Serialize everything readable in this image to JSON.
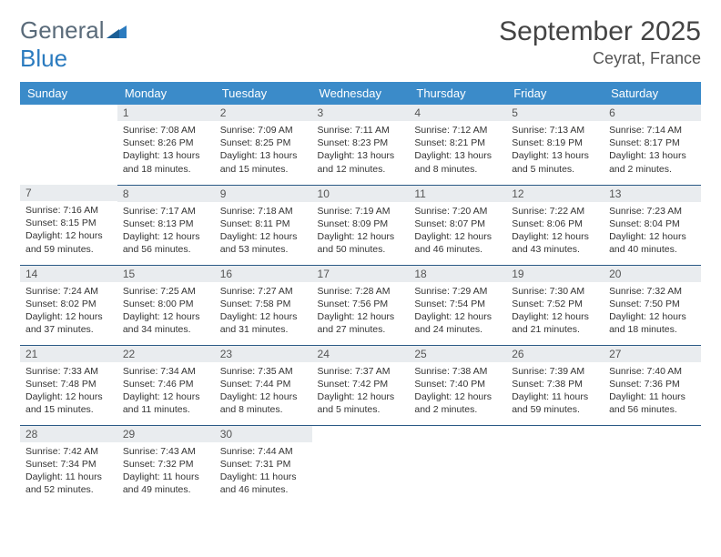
{
  "brand": {
    "part1": "General",
    "part2": "Blue"
  },
  "title": "September 2025",
  "location": "Ceyrat, France",
  "colors": {
    "header_bg": "#3b8bc9",
    "daynum_bg": "#e9ecef",
    "row_border": "#2b5a86",
    "logo_gray": "#5a6b7a",
    "logo_blue": "#2b7bbf"
  },
  "weekday_labels": [
    "Sunday",
    "Monday",
    "Tuesday",
    "Wednesday",
    "Thursday",
    "Friday",
    "Saturday"
  ],
  "weeks": [
    [
      null,
      {
        "n": "1",
        "sr": "7:08 AM",
        "ss": "8:26 PM",
        "dl": "13 hours and 18 minutes."
      },
      {
        "n": "2",
        "sr": "7:09 AM",
        "ss": "8:25 PM",
        "dl": "13 hours and 15 minutes."
      },
      {
        "n": "3",
        "sr": "7:11 AM",
        "ss": "8:23 PM",
        "dl": "13 hours and 12 minutes."
      },
      {
        "n": "4",
        "sr": "7:12 AM",
        "ss": "8:21 PM",
        "dl": "13 hours and 8 minutes."
      },
      {
        "n": "5",
        "sr": "7:13 AM",
        "ss": "8:19 PM",
        "dl": "13 hours and 5 minutes."
      },
      {
        "n": "6",
        "sr": "7:14 AM",
        "ss": "8:17 PM",
        "dl": "13 hours and 2 minutes."
      }
    ],
    [
      {
        "n": "7",
        "sr": "7:16 AM",
        "ss": "8:15 PM",
        "dl": "12 hours and 59 minutes."
      },
      {
        "n": "8",
        "sr": "7:17 AM",
        "ss": "8:13 PM",
        "dl": "12 hours and 56 minutes."
      },
      {
        "n": "9",
        "sr": "7:18 AM",
        "ss": "8:11 PM",
        "dl": "12 hours and 53 minutes."
      },
      {
        "n": "10",
        "sr": "7:19 AM",
        "ss": "8:09 PM",
        "dl": "12 hours and 50 minutes."
      },
      {
        "n": "11",
        "sr": "7:20 AM",
        "ss": "8:07 PM",
        "dl": "12 hours and 46 minutes."
      },
      {
        "n": "12",
        "sr": "7:22 AM",
        "ss": "8:06 PM",
        "dl": "12 hours and 43 minutes."
      },
      {
        "n": "13",
        "sr": "7:23 AM",
        "ss": "8:04 PM",
        "dl": "12 hours and 40 minutes."
      }
    ],
    [
      {
        "n": "14",
        "sr": "7:24 AM",
        "ss": "8:02 PM",
        "dl": "12 hours and 37 minutes."
      },
      {
        "n": "15",
        "sr": "7:25 AM",
        "ss": "8:00 PM",
        "dl": "12 hours and 34 minutes."
      },
      {
        "n": "16",
        "sr": "7:27 AM",
        "ss": "7:58 PM",
        "dl": "12 hours and 31 minutes."
      },
      {
        "n": "17",
        "sr": "7:28 AM",
        "ss": "7:56 PM",
        "dl": "12 hours and 27 minutes."
      },
      {
        "n": "18",
        "sr": "7:29 AM",
        "ss": "7:54 PM",
        "dl": "12 hours and 24 minutes."
      },
      {
        "n": "19",
        "sr": "7:30 AM",
        "ss": "7:52 PM",
        "dl": "12 hours and 21 minutes."
      },
      {
        "n": "20",
        "sr": "7:32 AM",
        "ss": "7:50 PM",
        "dl": "12 hours and 18 minutes."
      }
    ],
    [
      {
        "n": "21",
        "sr": "7:33 AM",
        "ss": "7:48 PM",
        "dl": "12 hours and 15 minutes."
      },
      {
        "n": "22",
        "sr": "7:34 AM",
        "ss": "7:46 PM",
        "dl": "12 hours and 11 minutes."
      },
      {
        "n": "23",
        "sr": "7:35 AM",
        "ss": "7:44 PM",
        "dl": "12 hours and 8 minutes."
      },
      {
        "n": "24",
        "sr": "7:37 AM",
        "ss": "7:42 PM",
        "dl": "12 hours and 5 minutes."
      },
      {
        "n": "25",
        "sr": "7:38 AM",
        "ss": "7:40 PM",
        "dl": "12 hours and 2 minutes."
      },
      {
        "n": "26",
        "sr": "7:39 AM",
        "ss": "7:38 PM",
        "dl": "11 hours and 59 minutes."
      },
      {
        "n": "27",
        "sr": "7:40 AM",
        "ss": "7:36 PM",
        "dl": "11 hours and 56 minutes."
      }
    ],
    [
      {
        "n": "28",
        "sr": "7:42 AM",
        "ss": "7:34 PM",
        "dl": "11 hours and 52 minutes."
      },
      {
        "n": "29",
        "sr": "7:43 AM",
        "ss": "7:32 PM",
        "dl": "11 hours and 49 minutes."
      },
      {
        "n": "30",
        "sr": "7:44 AM",
        "ss": "7:31 PM",
        "dl": "11 hours and 46 minutes."
      },
      null,
      null,
      null,
      null
    ]
  ],
  "labels": {
    "sunrise": "Sunrise:",
    "sunset": "Sunset:",
    "daylight": "Daylight:"
  }
}
